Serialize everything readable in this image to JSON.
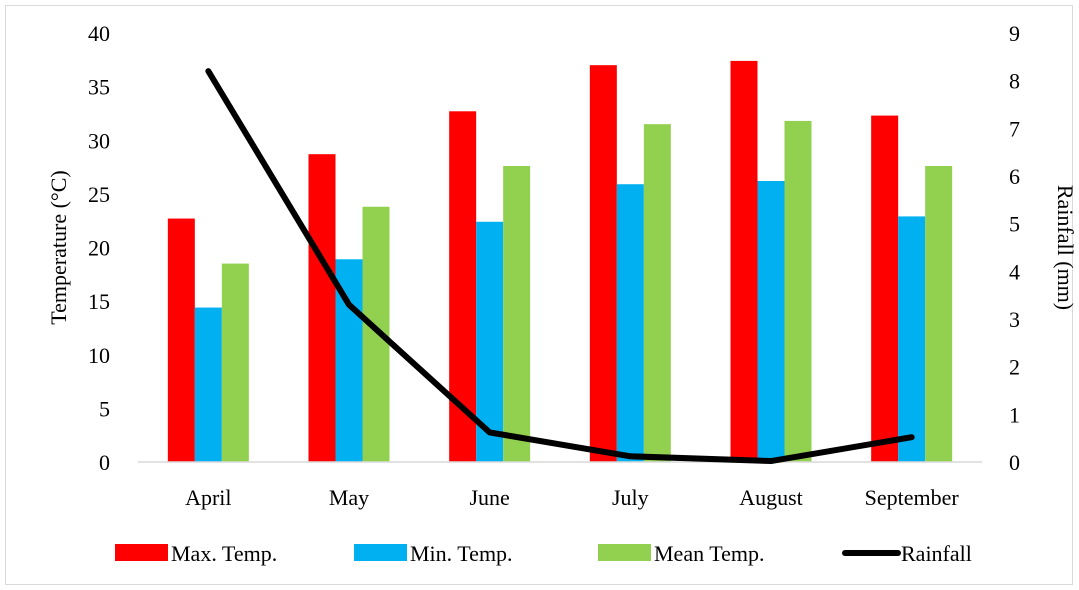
{
  "chart_data": {
    "type": "bar",
    "categories": [
      "April",
      "May",
      "June",
      "July",
      "August",
      "September"
    ],
    "series": [
      {
        "name": "Max. Temp.",
        "type": "bar",
        "axis": "left",
        "color": "#ff0000",
        "values": [
          22.7,
          28.7,
          32.7,
          37.0,
          37.4,
          32.3
        ]
      },
      {
        "name": "Min. Temp.",
        "type": "bar",
        "axis": "left",
        "color": "#00b0f0",
        "values": [
          14.4,
          18.9,
          22.4,
          25.9,
          26.2,
          22.9
        ]
      },
      {
        "name": "Mean Temp.",
        "type": "bar",
        "axis": "left",
        "color": "#92d050",
        "values": [
          18.5,
          23.8,
          27.6,
          31.5,
          31.8,
          27.6
        ]
      },
      {
        "name": "Rainfall",
        "type": "line",
        "axis": "right",
        "color": "#000000",
        "values": [
          8.2,
          3.3,
          0.62,
          0.12,
          0.02,
          0.52
        ]
      }
    ],
    "ylabel": "Temperature (°C)",
    "y2label": "Rainfall (mm)",
    "xlabel": "",
    "title": "",
    "ylim": [
      0,
      40
    ],
    "yticks": [
      "0",
      "5",
      "10",
      "15",
      "20",
      "25",
      "30",
      "35",
      "40"
    ],
    "y2lim": [
      0,
      9
    ],
    "y2ticks": [
      "0",
      "1",
      "2",
      "3",
      "4",
      "5",
      "6",
      "7",
      "8",
      "9"
    ],
    "grid": false,
    "legend": "bottom"
  }
}
